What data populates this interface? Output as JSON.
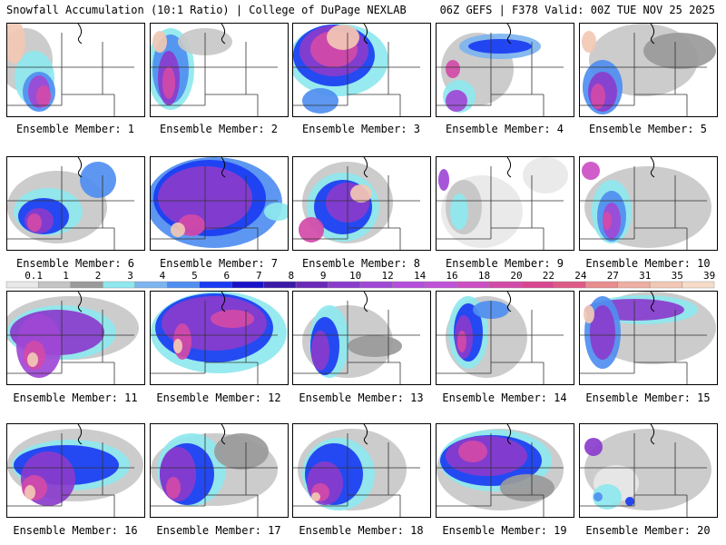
{
  "header": {
    "title": "Snowfall Accumulation (10:1 Ratio) | College of DuPage NEXLAB",
    "run_info": "06Z GEFS | F378 Valid: 00Z TUE NOV 25 2025"
  },
  "legend": {
    "labels": [
      "0.1",
      "1",
      "2",
      "3",
      "4",
      "5",
      "6",
      "7",
      "8",
      "9",
      "10",
      "12",
      "14",
      "16",
      "18",
      "20",
      "22",
      "24",
      "27",
      "31",
      "35",
      "39"
    ],
    "colors": [
      "#e8e8e8",
      "#c4c4c4",
      "#9a9a9a",
      "#8ee8ee",
      "#7cb4f0",
      "#4f8ef0",
      "#1a3cf2",
      "#1a12c8",
      "#3c1aa8",
      "#6a2ab8",
      "#8a3ccc",
      "#a048d6",
      "#b44edc",
      "#c052d8",
      "#cc4ec4",
      "#d24aa8",
      "#d84690",
      "#de5a86",
      "#e88c8e",
      "#eeaea2",
      "#f2c8b4",
      "#f6dcc8"
    ]
  },
  "panels": [
    {
      "caption": "Ensemble Member: 1",
      "blobs": [
        [
          20,
          40,
          30,
          35,
          "#c8c8c8"
        ],
        [
          30,
          60,
          22,
          30,
          "#8ee8ee"
        ],
        [
          35,
          75,
          18,
          22,
          "#4f8ef0"
        ],
        [
          35,
          75,
          12,
          18,
          "#a048d6"
        ],
        [
          40,
          80,
          8,
          12,
          "#d24aa8"
        ],
        [
          8,
          20,
          12,
          24,
          "#f2c8b4"
        ]
      ]
    },
    {
      "caption": "Ensemble Member: 2",
      "blobs": [
        [
          22,
          50,
          26,
          45,
          "#8ee8ee"
        ],
        [
          22,
          50,
          20,
          38,
          "#4f8ef0"
        ],
        [
          20,
          60,
          12,
          30,
          "#8a3ccc"
        ],
        [
          20,
          65,
          7,
          18,
          "#d24aa8"
        ],
        [
          10,
          20,
          8,
          12,
          "#f2c8b4"
        ],
        [
          60,
          20,
          30,
          15,
          "#c8c8c8"
        ]
      ]
    },
    {
      "caption": "Ensemble Member: 3",
      "blobs": [
        [
          50,
          40,
          55,
          40,
          "#8ee8ee"
        ],
        [
          45,
          35,
          45,
          34,
          "#1a3cf2"
        ],
        [
          45,
          30,
          38,
          28,
          "#8a3ccc"
        ],
        [
          45,
          28,
          26,
          20,
          "#d24aa8"
        ],
        [
          55,
          15,
          18,
          14,
          "#f2c8b4"
        ],
        [
          30,
          85,
          20,
          14,
          "#4f8ef0"
        ]
      ]
    },
    {
      "caption": "Ensemble Member: 4",
      "blobs": [
        [
          45,
          50,
          40,
          40,
          "#c8c8c8"
        ],
        [
          25,
          80,
          18,
          18,
          "#8ee8ee"
        ],
        [
          22,
          85,
          12,
          12,
          "#a048d6"
        ],
        [
          70,
          25,
          45,
          14,
          "#7cb4f0"
        ],
        [
          70,
          25,
          35,
          8,
          "#1a3cf2"
        ],
        [
          18,
          50,
          8,
          10,
          "#d24aa8"
        ]
      ]
    },
    {
      "caption": "Ensemble Member: 5",
      "blobs": [
        [
          70,
          40,
          60,
          40,
          "#c8c8c8"
        ],
        [
          25,
          70,
          22,
          30,
          "#4f8ef0"
        ],
        [
          25,
          75,
          16,
          22,
          "#8a3ccc"
        ],
        [
          20,
          80,
          8,
          14,
          "#d24aa8"
        ],
        [
          10,
          20,
          8,
          12,
          "#f2c8b4"
        ],
        [
          110,
          30,
          40,
          20,
          "#9a9a9a"
        ]
      ]
    },
    {
      "caption": "Ensemble Member: 6",
      "blobs": [
        [
          55,
          55,
          55,
          40,
          "#c8c8c8"
        ],
        [
          45,
          60,
          38,
          26,
          "#8ee8ee"
        ],
        [
          40,
          65,
          28,
          20,
          "#1a3cf2"
        ],
        [
          35,
          70,
          16,
          14,
          "#8a3ccc"
        ],
        [
          30,
          72,
          8,
          10,
          "#d24aa8"
        ],
        [
          100,
          25,
          20,
          20,
          "#4f8ef0"
        ]
      ]
    },
    {
      "caption": "Ensemble Member: 7",
      "blobs": [
        [
          70,
          50,
          75,
          50,
          "#4f8ef0"
        ],
        [
          65,
          45,
          62,
          42,
          "#1a3cf2"
        ],
        [
          60,
          45,
          52,
          35,
          "#8a3ccc"
        ],
        [
          45,
          75,
          15,
          12,
          "#d24aa8"
        ],
        [
          30,
          80,
          8,
          8,
          "#f2c8b4"
        ],
        [
          140,
          60,
          15,
          10,
          "#8ee8ee"
        ]
      ]
    },
    {
      "caption": "Ensemble Member: 8",
      "blobs": [
        [
          60,
          50,
          50,
          45,
          "#c8c8c8"
        ],
        [
          55,
          55,
          40,
          38,
          "#8ee8ee"
        ],
        [
          55,
          55,
          32,
          30,
          "#1a3cf2"
        ],
        [
          60,
          50,
          24,
          22,
          "#8a3ccc"
        ],
        [
          75,
          40,
          12,
          10,
          "#f2c8b4"
        ],
        [
          20,
          80,
          14,
          14,
          "#d24aa8"
        ]
      ]
    },
    {
      "caption": "Ensemble Member: 9",
      "blobs": [
        [
          50,
          60,
          45,
          40,
          "#e8e8e8"
        ],
        [
          30,
          55,
          20,
          30,
          "#c4c4c4"
        ],
        [
          25,
          60,
          10,
          20,
          "#8ee8ee"
        ],
        [
          8,
          25,
          6,
          12,
          "#a048d6"
        ],
        [
          120,
          20,
          25,
          20,
          "#e8e8e8"
        ]
      ]
    },
    {
      "caption": "Ensemble Member: 10",
      "blobs": [
        [
          75,
          55,
          70,
          45,
          "#c8c8c8"
        ],
        [
          35,
          60,
          22,
          35,
          "#8ee8ee"
        ],
        [
          35,
          65,
          16,
          28,
          "#4f8ef0"
        ],
        [
          35,
          70,
          10,
          20,
          "#a048d6"
        ],
        [
          30,
          70,
          5,
          10,
          "#d24aa8"
        ],
        [
          12,
          15,
          10,
          10,
          "#cc4ec4"
        ]
      ]
    },
    {
      "caption": "Ensemble Member: 11",
      "blobs": [
        [
          70,
          40,
          75,
          35,
          "#c8c8c8"
        ],
        [
          60,
          45,
          60,
          30,
          "#8ee8ee"
        ],
        [
          55,
          45,
          52,
          25,
          "#8a3ccc"
        ],
        [
          35,
          60,
          25,
          35,
          "#a048d6"
        ],
        [
          30,
          70,
          12,
          16,
          "#d24aa8"
        ],
        [
          28,
          75,
          6,
          8,
          "#f2c8b4"
        ]
      ]
    },
    {
      "caption": "Ensemble Member: 12",
      "blobs": [
        [
          75,
          45,
          75,
          45,
          "#8ee8ee"
        ],
        [
          70,
          40,
          65,
          38,
          "#1a3cf2"
        ],
        [
          70,
          35,
          58,
          30,
          "#8a3ccc"
        ],
        [
          90,
          30,
          24,
          10,
          "#d24aa8"
        ],
        [
          35,
          55,
          10,
          20,
          "#d24aa8"
        ],
        [
          30,
          60,
          5,
          8,
          "#f2c8b4"
        ]
      ]
    },
    {
      "caption": "Ensemble Member: 13",
      "blobs": [
        [
          60,
          55,
          50,
          40,
          "#c8c8c8"
        ],
        [
          40,
          55,
          22,
          40,
          "#8ee8ee"
        ],
        [
          35,
          60,
          16,
          32,
          "#1a3cf2"
        ],
        [
          30,
          65,
          10,
          22,
          "#8a3ccc"
        ],
        [
          90,
          60,
          30,
          12,
          "#9a9a9a"
        ]
      ]
    },
    {
      "caption": "Ensemble Member: 14",
      "blobs": [
        [
          55,
          50,
          45,
          45,
          "#c8c8c8"
        ],
        [
          35,
          45,
          22,
          40,
          "#8ee8ee"
        ],
        [
          35,
          45,
          16,
          32,
          "#1a3cf2"
        ],
        [
          30,
          50,
          10,
          24,
          "#8a3ccc"
        ],
        [
          28,
          55,
          5,
          12,
          "#d24aa8"
        ],
        [
          60,
          20,
          20,
          10,
          "#4f8ef0"
        ]
      ]
    },
    {
      "caption": "Ensemble Member: 15",
      "blobs": [
        [
          80,
          40,
          70,
          40,
          "#c8c8c8"
        ],
        [
          70,
          20,
          60,
          16,
          "#8ee8ee"
        ],
        [
          60,
          20,
          55,
          12,
          "#8a3ccc"
        ],
        [
          25,
          45,
          20,
          40,
          "#4f8ef0"
        ],
        [
          25,
          45,
          14,
          30,
          "#8a3ccc"
        ],
        [
          10,
          25,
          6,
          10,
          "#f2c8b4"
        ]
      ]
    },
    {
      "caption": "Ensemble Member: 16",
      "blobs": [
        [
          75,
          45,
          75,
          40,
          "#c8c8c8"
        ],
        [
          70,
          45,
          65,
          28,
          "#8ee8ee"
        ],
        [
          65,
          45,
          58,
          22,
          "#1a3cf2"
        ],
        [
          45,
          60,
          30,
          30,
          "#8a3ccc"
        ],
        [
          30,
          70,
          14,
          14,
          "#d24aa8"
        ],
        [
          25,
          75,
          6,
          8,
          "#f2c8b4"
        ]
      ]
    },
    {
      "caption": "Ensemble Member: 17",
      "blobs": [
        [
          70,
          50,
          70,
          40,
          "#c8c8c8"
        ],
        [
          45,
          50,
          38,
          40,
          "#8ee8ee"
        ],
        [
          40,
          55,
          30,
          34,
          "#1a3cf2"
        ],
        [
          30,
          55,
          20,
          30,
          "#8a3ccc"
        ],
        [
          25,
          70,
          8,
          12,
          "#d24aa8"
        ],
        [
          100,
          30,
          30,
          20,
          "#9a9a9a"
        ]
      ]
    },
    {
      "caption": "Ensemble Member: 18",
      "blobs": [
        [
          65,
          50,
          60,
          45,
          "#c8c8c8"
        ],
        [
          50,
          55,
          40,
          40,
          "#8ee8ee"
        ],
        [
          45,
          55,
          32,
          34,
          "#1a3cf2"
        ],
        [
          35,
          65,
          20,
          24,
          "#8a3ccc"
        ],
        [
          30,
          75,
          10,
          10,
          "#d24aa8"
        ],
        [
          25,
          80,
          5,
          5,
          "#f2c8b4"
        ]
      ]
    },
    {
      "caption": "Ensemble Member: 19",
      "blobs": [
        [
          70,
          50,
          70,
          45,
          "#c8c8c8"
        ],
        [
          65,
          40,
          62,
          34,
          "#8ee8ee"
        ],
        [
          60,
          40,
          56,
          28,
          "#1a3cf2"
        ],
        [
          55,
          35,
          45,
          22,
          "#8a3ccc"
        ],
        [
          40,
          30,
          16,
          12,
          "#d24aa8"
        ],
        [
          100,
          70,
          30,
          15,
          "#9a9a9a"
        ]
      ]
    },
    {
      "caption": "Ensemble Member: 20",
      "blobs": [
        [
          75,
          50,
          70,
          45,
          "#c8c8c8"
        ],
        [
          40,
          65,
          25,
          20,
          "#e8e8e8"
        ],
        [
          30,
          80,
          16,
          14,
          "#8ee8ee"
        ],
        [
          20,
          80,
          5,
          5,
          "#4f8ef0"
        ],
        [
          55,
          85,
          5,
          5,
          "#1a3cf2"
        ],
        [
          15,
          25,
          10,
          10,
          "#8a3ccc"
        ]
      ]
    }
  ]
}
